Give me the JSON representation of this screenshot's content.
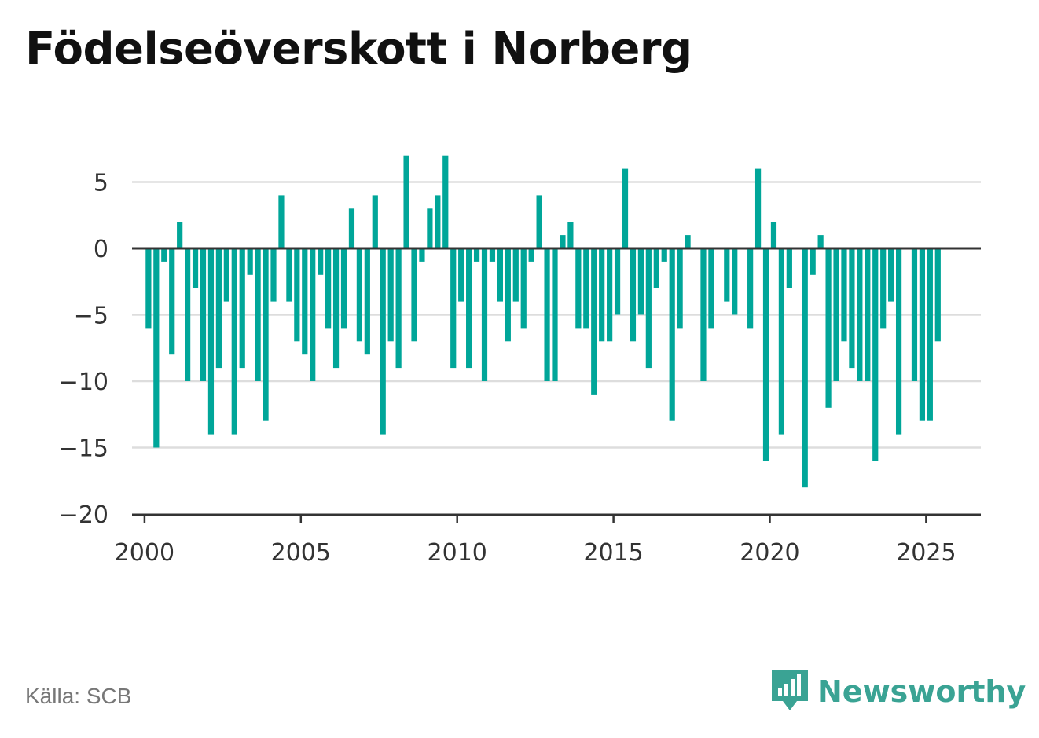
{
  "title": "Födelseöverskott i Norberg",
  "source": "Källa: SCB",
  "brand": {
    "name": "Newsworthy",
    "icon": "newsworthy-logo-icon",
    "color": "#3aa394"
  },
  "colors": {
    "bar": "#00a699",
    "axis": "#333333",
    "grid": "#dddddd",
    "tick_text": "#333333"
  },
  "chart_data": {
    "type": "bar",
    "title": "Födelseöverskott i Norberg",
    "xlabel": "",
    "ylabel": "",
    "ylim": [
      -20,
      8
    ],
    "xlim": [
      1999.6,
      2026.75
    ],
    "yticks": [
      5,
      0,
      -5,
      -10,
      -15,
      -20
    ],
    "ytick_labels": [
      "5",
      "0",
      "−5",
      "−10",
      "−15",
      "−20"
    ],
    "xticks": [
      2000,
      2005,
      2010,
      2015,
      2020,
      2025
    ],
    "xtick_labels": [
      "2000",
      "2005",
      "2010",
      "2015",
      "2020",
      "2025"
    ],
    "grid": true,
    "frequency": "quarterly",
    "start": "2000 Q1",
    "values": [
      -6,
      -15,
      -1,
      -8,
      2,
      -10,
      -3,
      -10,
      -14,
      -9,
      -4,
      -14,
      -9,
      -2,
      -10,
      -13,
      -4,
      4,
      -4,
      -7,
      -8,
      -10,
      -2,
      -6,
      -9,
      -6,
      3,
      -7,
      -8,
      4,
      -14,
      -7,
      -9,
      7,
      -7,
      -1,
      3,
      4,
      7,
      -9,
      -4,
      -9,
      -1,
      -10,
      -1,
      -4,
      -7,
      -4,
      -6,
      -1,
      4,
      -10,
      -10,
      1,
      2,
      -6,
      -6,
      -11,
      -7,
      -7,
      -5,
      6,
      -7,
      -5,
      -9,
      -3,
      -1,
      -13,
      -6,
      1,
      0,
      -10,
      -6,
      0,
      -4,
      -5,
      0,
      -6,
      6,
      -16,
      2,
      -14,
      -3,
      0,
      -18,
      -2,
      1,
      -12,
      -10,
      -7,
      -9,
      -10,
      -10,
      -16,
      -6,
      -4,
      -14,
      0,
      -10,
      -13,
      -13,
      -7
    ]
  }
}
